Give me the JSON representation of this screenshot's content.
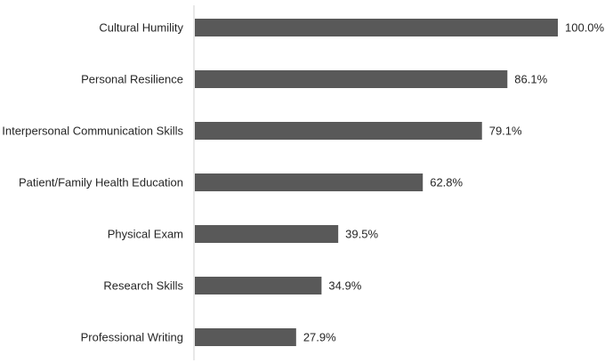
{
  "chart_data": {
    "type": "bar",
    "orientation": "horizontal",
    "categories": [
      "Cultural Humility",
      "Personal Resilience",
      "Interpersonal Communication Skills",
      "Patient/Family Health Education",
      "Physical Exam",
      "Research Skills",
      "Professional Writing"
    ],
    "values": [
      100.0,
      86.1,
      79.1,
      62.8,
      39.5,
      34.9,
      27.9
    ],
    "value_labels": [
      "100.0%",
      "86.1%",
      "79.1%",
      "62.8%",
      "39.5%",
      "34.9%",
      "27.9%"
    ],
    "xlim": [
      0,
      100
    ],
    "grid": false,
    "legend": "none",
    "colors": {
      "bar": "#595959",
      "axis": "#d0d0d0",
      "text": "#262626"
    }
  }
}
